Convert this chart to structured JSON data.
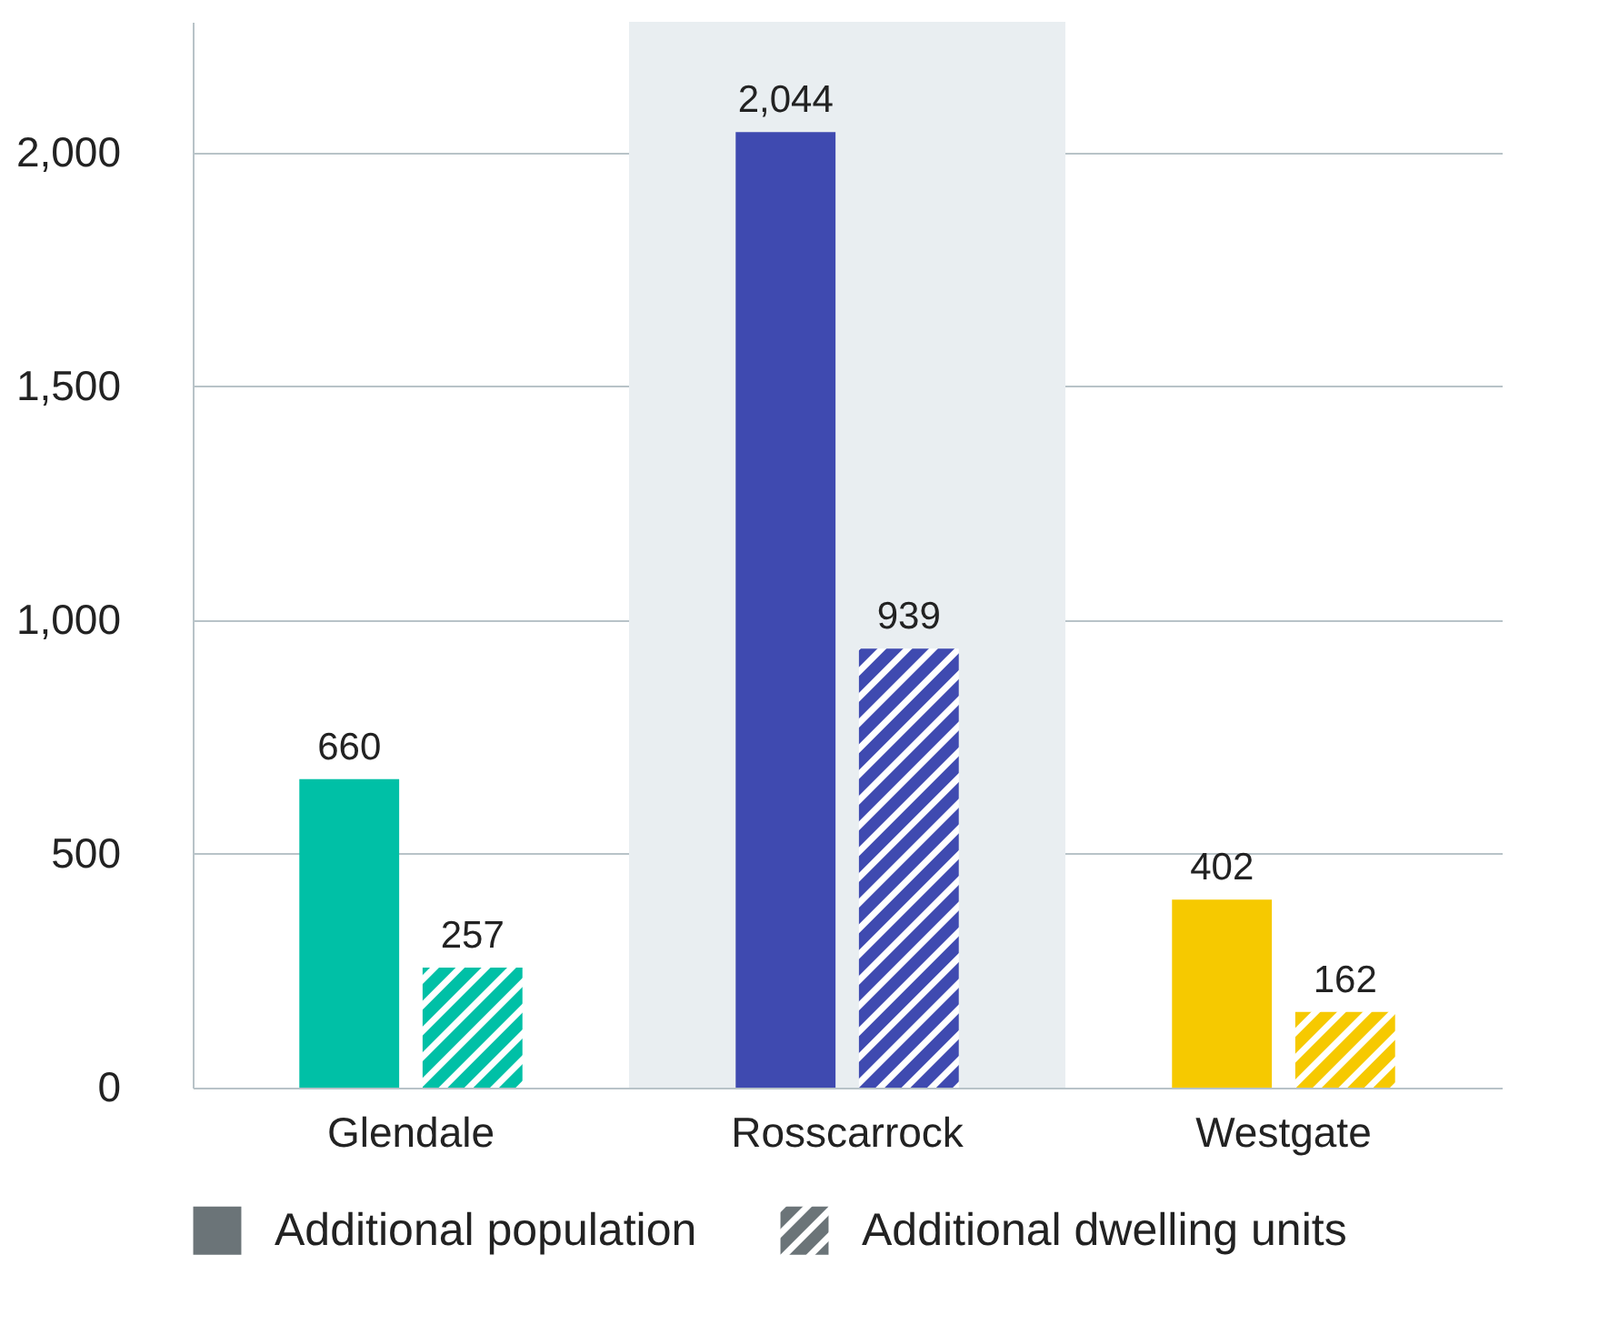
{
  "chart_data": {
    "type": "bar",
    "categories": [
      "Glendale",
      "Rosscarrock",
      "Westgate"
    ],
    "series": [
      {
        "name": "Additional population",
        "color": "#6b7478",
        "colors": [
          "#00c0a6",
          "#3f4ab0",
          "#f6c900"
        ],
        "values": [
          660,
          2044,
          402
        ],
        "value_labels": [
          "660",
          "2,044",
          "402"
        ]
      },
      {
        "name": "Additional dwelling units",
        "color": "#6b7478",
        "colors": [
          "#00c0a6",
          "#3f4ab0",
          "#f6c900"
        ],
        "values": [
          257,
          939,
          162
        ],
        "value_labels": [
          "257",
          "939",
          "162"
        ]
      }
    ],
    "ylim": [
      0,
      2280
    ],
    "yticks": [
      0,
      {
        "value": 500,
        "label": "500"
      },
      {
        "value": 1000,
        "label": "1,000"
      },
      {
        "value": 1500,
        "label": "1,500"
      },
      {
        "value": 2000,
        "label": "2,000"
      }
    ],
    "grid": "y",
    "legend": "bottom",
    "bands": [
      {
        "axis": "x",
        "from": "Rosscarrock",
        "to": "Rosscarrock",
        "color": "#e9eef1"
      }
    ]
  }
}
